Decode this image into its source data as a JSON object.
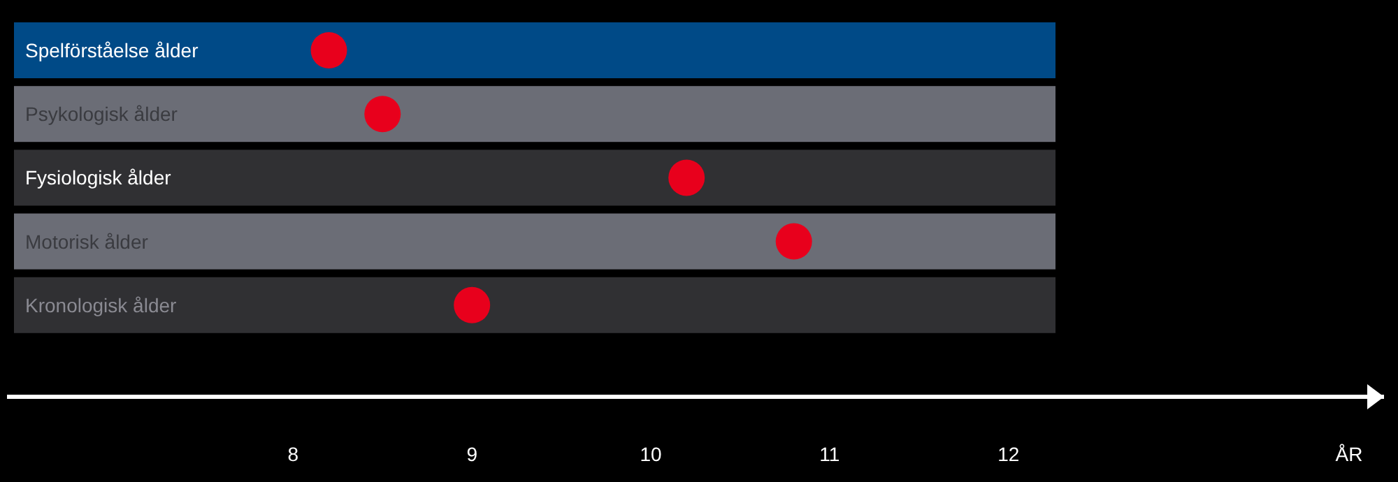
{
  "chart_data": {
    "type": "scatter",
    "orientation": "horizontal",
    "categories": [
      "Spelförståelse ålder",
      "Psykologisk ålder",
      "Fysiologisk ålder",
      "Motorisk ålder",
      "Kronologisk ålder"
    ],
    "values": [
      8.2,
      8.5,
      10.2,
      10.8,
      9.0
    ],
    "color": "#e8001c",
    "marker": "circle",
    "xlim": [
      6.4,
      14.1
    ],
    "xticks": [
      8,
      9,
      10,
      11,
      12
    ],
    "xlabel": "ÅR"
  }
}
